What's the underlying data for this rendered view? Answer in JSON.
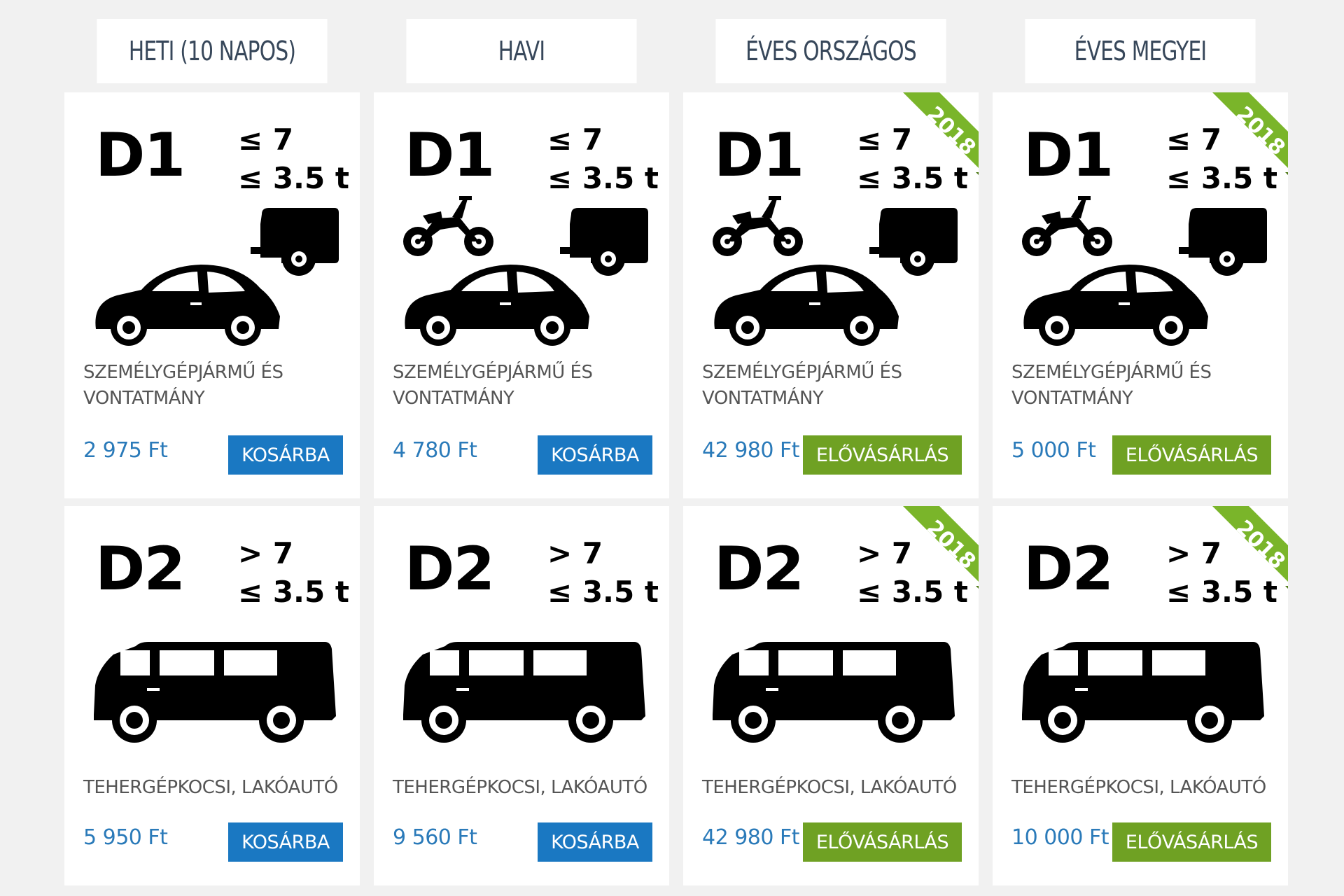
{
  "columns": [
    {
      "header": "HETI (10 NAPOS)"
    },
    {
      "header": "HAVI"
    },
    {
      "header": "ÉVES ORSZÁGOS"
    },
    {
      "header": "ÉVES MEGYEI"
    }
  ],
  "rows": [
    {
      "code": "D1",
      "spec1": "≤ 7",
      "spec2": "≤ 3.5 t",
      "desc_line1": "SZEMÉLYGÉPJÁRMŰ ÉS",
      "desc_line2": "VONTATMÁNY",
      "cells": [
        {
          "price": "2 975 Ft",
          "button": "KOSÁRBA",
          "ribbon": ""
        },
        {
          "price": "4 780 Ft",
          "button": "KOSÁRBA",
          "ribbon": ""
        },
        {
          "price": "42 980 Ft",
          "button": "ELŐVÁSÁRLÁS",
          "ribbon": "2018"
        },
        {
          "price": "5 000 Ft",
          "button": "ELŐVÁSÁRLÁS",
          "ribbon": "2018"
        }
      ]
    },
    {
      "code": "D2",
      "spec1": "> 7",
      "spec2": "≤ 3.5 t",
      "desc_line1": "TEHERGÉPKOCSI, LAKÓAUTÓ",
      "desc_line2": "",
      "cells": [
        {
          "price": "5 950 Ft",
          "button": "KOSÁRBA",
          "ribbon": ""
        },
        {
          "price": "9 560 Ft",
          "button": "KOSÁRBA",
          "ribbon": ""
        },
        {
          "price": "42 980 Ft",
          "button": "ELŐVÁSÁRLÁS",
          "ribbon": "2018"
        },
        {
          "price": "10 000 Ft",
          "button": "ELŐVÁSÁRLÁS",
          "ribbon": "2018"
        }
      ]
    }
  ],
  "colors": {
    "cart_button": "#1a78c2",
    "preorder_button": "#6fa123",
    "price_text": "#2a7ab9",
    "ribbon": "#7ab52a"
  }
}
